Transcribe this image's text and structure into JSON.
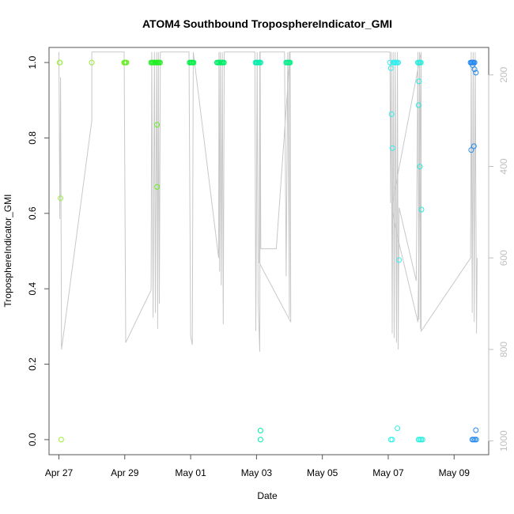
{
  "chart_data": {
    "type": "scatter",
    "title": "ATOM4 Southbound TroposphereIndicator_GMI",
    "xlabel": "Date",
    "ylabel": "TroposphereIndicator_GMI",
    "xlim": [
      -0.3,
      13.05
    ],
    "ylim": [
      -0.04,
      1.04
    ],
    "x_ticks": [
      {
        "value": 0,
        "label": "Apr 27"
      },
      {
        "value": 2,
        "label": "Apr 29"
      },
      {
        "value": 4,
        "label": "May 01"
      },
      {
        "value": 6,
        "label": "May 03"
      },
      {
        "value": 8,
        "label": "May 05"
      },
      {
        "value": 10,
        "label": "May 07"
      },
      {
        "value": 12,
        "label": "May 09"
      }
    ],
    "y_ticks": [
      {
        "value": 0.0,
        "label": "0.0"
      },
      {
        "value": 0.2,
        "label": "0.2"
      },
      {
        "value": 0.4,
        "label": "0.4"
      },
      {
        "value": 0.6,
        "label": "0.6"
      },
      {
        "value": 0.8,
        "label": "0.8"
      },
      {
        "value": 1.0,
        "label": "1.0"
      }
    ],
    "right_axis": {
      "range": [
        1030,
        140
      ],
      "ticks": [
        {
          "value": 200,
          "label": "200"
        },
        {
          "value": 400,
          "label": "400"
        },
        {
          "value": 600,
          "label": "600"
        },
        {
          "value": 800,
          "label": "800"
        },
        {
          "value": 1000,
          "label": "1000"
        }
      ]
    },
    "grid": false,
    "colors": {
      "apr27": "#9aee3a",
      "apr29": "#66ee22",
      "apr30": "#22ee22",
      "may01": "#00ee44",
      "may02": "#00ee66",
      "may03": "#00eeaa",
      "may04": "#00ee88",
      "may06": "#33eeee",
      "may07": "#22eedd",
      "may09": "#2288ee",
      "pressure_line": "#c8c8c8"
    },
    "points": [
      {
        "x": 0.02,
        "y": 1.0,
        "c": "apr27"
      },
      {
        "x": 0.03,
        "y": 1.0,
        "c": "apr27"
      },
      {
        "x": 0.05,
        "y": 0.64,
        "c": "apr27"
      },
      {
        "x": 0.07,
        "y": 0.0,
        "c": "apr27"
      },
      {
        "x": 1.0,
        "y": 1.0,
        "c": "apr27"
      },
      {
        "x": 1.98,
        "y": 1.0,
        "c": "apr29"
      },
      {
        "x": 2.0,
        "y": 1.0,
        "c": "apr29"
      },
      {
        "x": 2.03,
        "y": 1.0,
        "c": "apr29"
      },
      {
        "x": 2.05,
        "y": 1.0,
        "c": "apr29"
      },
      {
        "x": 2.8,
        "y": 1.0,
        "c": "apr30"
      },
      {
        "x": 2.83,
        "y": 1.0,
        "c": "apr30"
      },
      {
        "x": 2.86,
        "y": 1.0,
        "c": "apr30"
      },
      {
        "x": 2.89,
        "y": 1.0,
        "c": "apr30"
      },
      {
        "x": 2.92,
        "y": 1.0,
        "c": "apr30"
      },
      {
        "x": 2.95,
        "y": 1.0,
        "c": "apr30"
      },
      {
        "x": 2.98,
        "y": 1.0,
        "c": "apr30"
      },
      {
        "x": 3.01,
        "y": 1.0,
        "c": "apr30"
      },
      {
        "x": 3.04,
        "y": 1.0,
        "c": "apr30"
      },
      {
        "x": 3.07,
        "y": 1.0,
        "c": "apr30"
      },
      {
        "x": 2.98,
        "y": 0.835,
        "c": "apr29"
      },
      {
        "x": 2.98,
        "y": 0.67,
        "c": "apr29"
      },
      {
        "x": 3.97,
        "y": 1.0,
        "c": "may01"
      },
      {
        "x": 4.0,
        "y": 1.0,
        "c": "may01"
      },
      {
        "x": 4.03,
        "y": 1.0,
        "c": "may01"
      },
      {
        "x": 4.06,
        "y": 1.0,
        "c": "may01"
      },
      {
        "x": 4.09,
        "y": 1.0,
        "c": "may01"
      },
      {
        "x": 4.8,
        "y": 1.0,
        "c": "may02"
      },
      {
        "x": 4.83,
        "y": 1.0,
        "c": "may02"
      },
      {
        "x": 4.86,
        "y": 1.0,
        "c": "may02"
      },
      {
        "x": 4.89,
        "y": 1.0,
        "c": "may02"
      },
      {
        "x": 4.92,
        "y": 1.0,
        "c": "may02"
      },
      {
        "x": 4.95,
        "y": 1.0,
        "c": "may02"
      },
      {
        "x": 4.98,
        "y": 1.0,
        "c": "may02"
      },
      {
        "x": 5.01,
        "y": 1.0,
        "c": "may02"
      },
      {
        "x": 5.97,
        "y": 1.0,
        "c": "may03"
      },
      {
        "x": 6.0,
        "y": 1.0,
        "c": "may03"
      },
      {
        "x": 6.03,
        "y": 1.0,
        "c": "may03"
      },
      {
        "x": 6.06,
        "y": 1.0,
        "c": "may03"
      },
      {
        "x": 6.09,
        "y": 1.0,
        "c": "may03"
      },
      {
        "x": 6.12,
        "y": 1.0,
        "c": "may03"
      },
      {
        "x": 6.12,
        "y": 0.024,
        "c": "may03"
      },
      {
        "x": 6.12,
        "y": 0.0,
        "c": "may03"
      },
      {
        "x": 6.9,
        "y": 1.0,
        "c": "may04"
      },
      {
        "x": 6.93,
        "y": 1.0,
        "c": "may04"
      },
      {
        "x": 6.96,
        "y": 1.0,
        "c": "may04"
      },
      {
        "x": 6.99,
        "y": 1.0,
        "c": "may04"
      },
      {
        "x": 7.02,
        "y": 1.0,
        "c": "may04"
      },
      {
        "x": 10.05,
        "y": 1.0,
        "c": "may06"
      },
      {
        "x": 10.08,
        "y": 0.985,
        "c": "may06"
      },
      {
        "x": 10.1,
        "y": 0.863,
        "c": "may06"
      },
      {
        "x": 10.13,
        "y": 0.773,
        "c": "may06"
      },
      {
        "x": 10.15,
        "y": 1.0,
        "c": "may06"
      },
      {
        "x": 10.18,
        "y": 1.0,
        "c": "may06"
      },
      {
        "x": 10.21,
        "y": 1.0,
        "c": "may06"
      },
      {
        "x": 10.24,
        "y": 1.0,
        "c": "may06"
      },
      {
        "x": 10.27,
        "y": 1.0,
        "c": "may06"
      },
      {
        "x": 10.3,
        "y": 1.0,
        "c": "may06"
      },
      {
        "x": 10.33,
        "y": 0.476,
        "c": "may06"
      },
      {
        "x": 10.28,
        "y": 0.03,
        "c": "may06"
      },
      {
        "x": 10.08,
        "y": 0.0,
        "c": "may06"
      },
      {
        "x": 10.12,
        "y": 0.0,
        "c": "may06"
      },
      {
        "x": 10.9,
        "y": 1.0,
        "c": "may07"
      },
      {
        "x": 10.93,
        "y": 1.0,
        "c": "may07"
      },
      {
        "x": 10.96,
        "y": 1.0,
        "c": "may07"
      },
      {
        "x": 10.99,
        "y": 1.0,
        "c": "may07"
      },
      {
        "x": 10.93,
        "y": 0.95,
        "c": "may07"
      },
      {
        "x": 10.92,
        "y": 0.887,
        "c": "may07"
      },
      {
        "x": 10.96,
        "y": 0.724,
        "c": "may07"
      },
      {
        "x": 11.01,
        "y": 0.61,
        "c": "may07"
      },
      {
        "x": 10.92,
        "y": 0.0,
        "c": "may07"
      },
      {
        "x": 10.96,
        "y": 0.0,
        "c": "may07"
      },
      {
        "x": 11.0,
        "y": 0.0,
        "c": "may07"
      },
      {
        "x": 11.04,
        "y": 0.0,
        "c": "may07"
      },
      {
        "x": 12.5,
        "y": 1.0,
        "c": "may09"
      },
      {
        "x": 12.53,
        "y": 1.0,
        "c": "may09"
      },
      {
        "x": 12.56,
        "y": 1.0,
        "c": "may09"
      },
      {
        "x": 12.59,
        "y": 1.0,
        "c": "may09"
      },
      {
        "x": 12.62,
        "y": 1.0,
        "c": "may09"
      },
      {
        "x": 12.56,
        "y": 0.993,
        "c": "may09"
      },
      {
        "x": 12.62,
        "y": 0.982,
        "c": "may09"
      },
      {
        "x": 12.66,
        "y": 0.973,
        "c": "may09"
      },
      {
        "x": 12.52,
        "y": 0.768,
        "c": "may09"
      },
      {
        "x": 12.6,
        "y": 0.778,
        "c": "may09"
      },
      {
        "x": 12.66,
        "y": 0.025,
        "c": "may09"
      },
      {
        "x": 12.55,
        "y": 0.0,
        "c": "may09"
      },
      {
        "x": 12.59,
        "y": 0.0,
        "c": "may09"
      },
      {
        "x": 12.63,
        "y": 0.0,
        "c": "may09"
      },
      {
        "x": 12.67,
        "y": 0.0,
        "c": "may09"
      }
    ],
    "pressure_track": [
      [
        0.0,
        150
      ],
      [
        0.03,
        515
      ],
      [
        0.05,
        205
      ],
      [
        0.08,
        800
      ],
      [
        1.0,
        300
      ],
      [
        1.0,
        150
      ],
      [
        1.98,
        150
      ],
      [
        2.03,
        785
      ],
      [
        2.8,
        670
      ],
      [
        2.82,
        150
      ],
      [
        2.86,
        730
      ],
      [
        2.9,
        150
      ],
      [
        2.93,
        720
      ],
      [
        2.97,
        150
      ],
      [
        3.0,
        755
      ],
      [
        3.02,
        150
      ],
      [
        3.05,
        700
      ],
      [
        3.08,
        150
      ],
      [
        3.95,
        150
      ],
      [
        4.0,
        770
      ],
      [
        4.05,
        790
      ],
      [
        4.08,
        150
      ],
      [
        4.85,
        600
      ],
      [
        4.86,
        150
      ],
      [
        4.88,
        630
      ],
      [
        4.9,
        150
      ],
      [
        4.93,
        660
      ],
      [
        4.96,
        150
      ],
      [
        4.99,
        745
      ],
      [
        5.02,
        150
      ],
      [
        5.95,
        150
      ],
      [
        5.98,
        760
      ],
      [
        6.0,
        470
      ],
      [
        6.02,
        150
      ],
      [
        6.05,
        700
      ],
      [
        6.1,
        805
      ],
      [
        6.11,
        150
      ],
      [
        6.13,
        580
      ],
      [
        6.6,
        580
      ],
      [
        7.02,
        150
      ],
      [
        7.04,
        740
      ],
      [
        6.08,
        610
      ],
      [
        6.1,
        150
      ],
      [
        6.85,
        150
      ],
      [
        6.9,
        640
      ],
      [
        6.95,
        150
      ],
      [
        7.0,
        730
      ],
      [
        7.0,
        150
      ],
      [
        10.05,
        150
      ],
      [
        10.07,
        480
      ],
      [
        10.09,
        150
      ],
      [
        10.12,
        765
      ],
      [
        10.15,
        150
      ],
      [
        10.18,
        775
      ],
      [
        10.21,
        150
      ],
      [
        10.25,
        785
      ],
      [
        10.28,
        150
      ],
      [
        10.3,
        800
      ],
      [
        10.33,
        490
      ],
      [
        10.85,
        650
      ],
      [
        10.9,
        150
      ],
      [
        10.93,
        735
      ],
      [
        10.95,
        150
      ],
      [
        10.98,
        755
      ],
      [
        11.0,
        150
      ],
      [
        10.1,
        490
      ],
      [
        10.3,
        560
      ],
      [
        10.9,
        740
      ],
      [
        11.0,
        150
      ],
      [
        11.0,
        760
      ],
      [
        12.5,
        600
      ],
      [
        12.52,
        150
      ],
      [
        12.55,
        720
      ],
      [
        12.58,
        150
      ],
      [
        12.61,
        740
      ],
      [
        12.64,
        150
      ],
      [
        12.68,
        765
      ],
      [
        12.7,
        600
      ]
    ]
  }
}
